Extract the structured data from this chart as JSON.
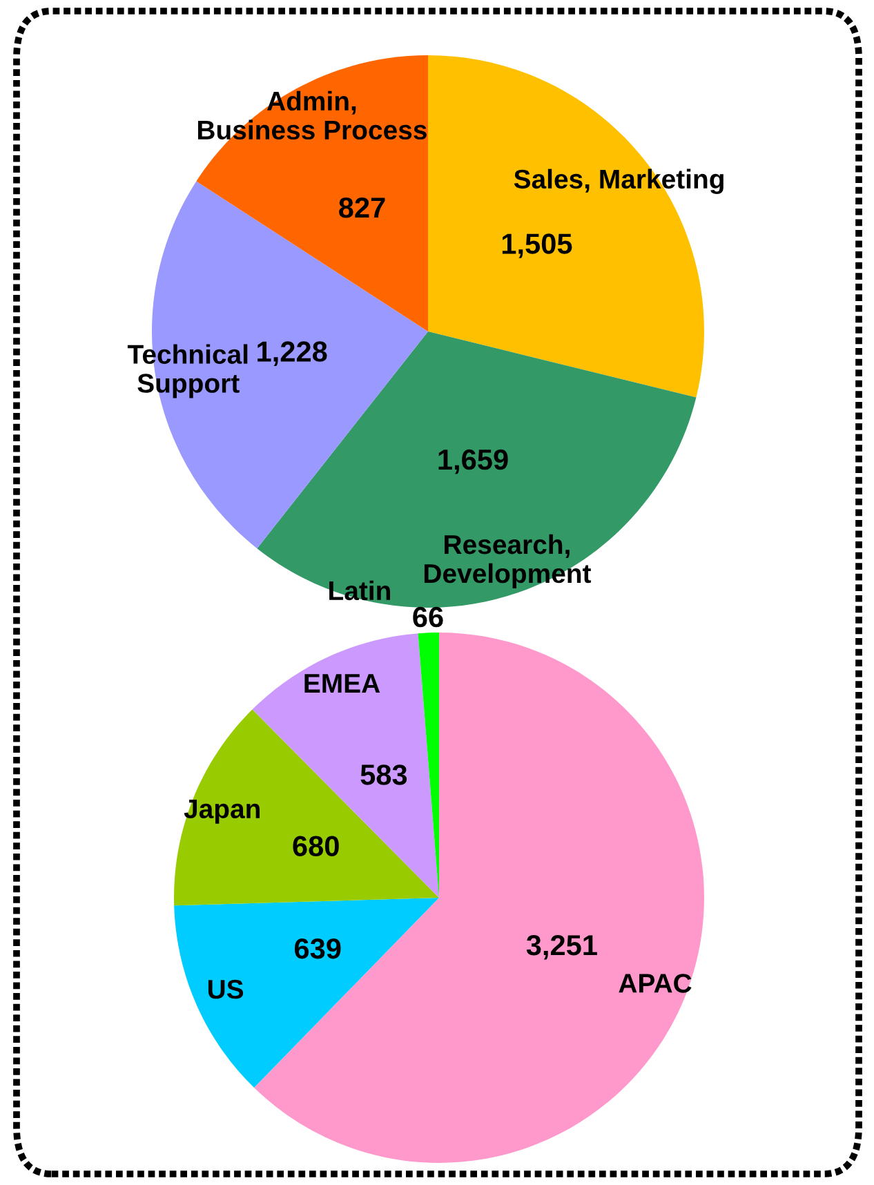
{
  "chart_data": [
    {
      "type": "pie",
      "categories": [
        "Sales, Marketing",
        "Research,\nDevelopment",
        "Technical\nSupport",
        "Admin,\nBusiness Process"
      ],
      "values": [
        1505,
        1659,
        1228,
        827
      ],
      "colors": [
        "#ffc000",
        "#339966",
        "#9999ff",
        "#ff6600"
      ],
      "value_labels": [
        "1,505",
        "1,659",
        "1,228",
        "827"
      ]
    },
    {
      "type": "pie",
      "categories": [
        "APAC",
        "US",
        "Japan",
        "EMEA",
        "Latin"
      ],
      "values": [
        3251,
        639,
        680,
        583,
        66
      ],
      "colors": [
        "#ff99cc",
        "#00ccff",
        "#99cc00",
        "#cc99ff",
        "#00ff00"
      ],
      "value_labels": [
        "3,251",
        "639",
        "680",
        "583",
        "66"
      ]
    }
  ]
}
